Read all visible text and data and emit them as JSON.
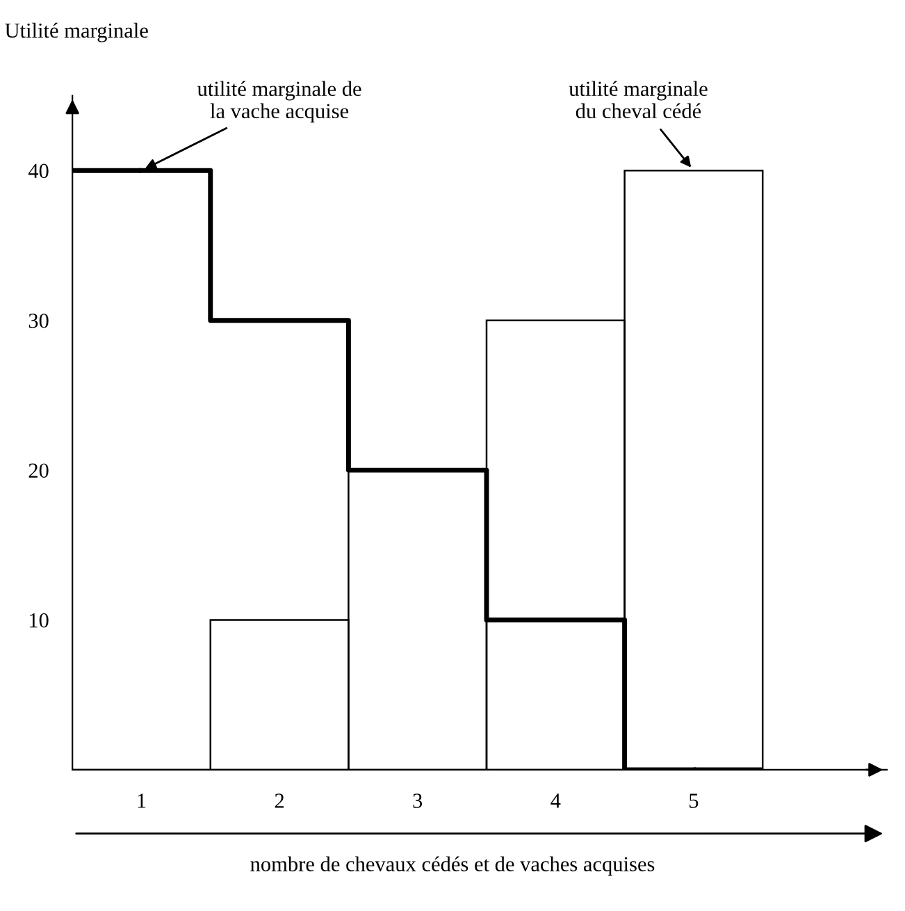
{
  "chart_data": {
    "type": "step",
    "ylabel": "Utilité marginale",
    "xlabel": "nombre de chevaux cédés et de vaches acquises",
    "categories": [
      "1",
      "2",
      "3",
      "4",
      "5"
    ],
    "series": [
      {
        "color": "#000000",
        "values": [
          40,
          30,
          20,
          10,
          0
        ]
      },
      {
        "type": "bar",
        "color": "#000000",
        "values": [
          0,
          10,
          20,
          30,
          40
        ]
      }
    ],
    "ylim": [
      0,
      45
    ],
    "yticks": [
      10,
      20,
      30,
      40
    ],
    "grid": false,
    "annotations": [
      {
        "text": "utilité marginale de\nla vache acquise",
        "x": "1",
        "y": 40
      },
      {
        "text": "utilité marginale\ndu cheval cédé",
        "x": "5",
        "y": 40
      }
    ]
  }
}
